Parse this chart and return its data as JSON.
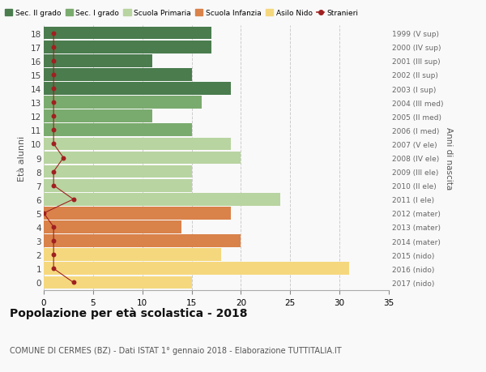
{
  "ages": [
    18,
    17,
    16,
    15,
    14,
    13,
    12,
    11,
    10,
    9,
    8,
    7,
    6,
    5,
    4,
    3,
    2,
    1,
    0
  ],
  "bar_values": [
    17,
    17,
    11,
    15,
    19,
    16,
    11,
    15,
    19,
    20,
    15,
    15,
    24,
    19,
    14,
    20,
    18,
    31,
    15
  ],
  "bar_colors": [
    "#4a7c4e",
    "#4a7c4e",
    "#4a7c4e",
    "#4a7c4e",
    "#4a7c4e",
    "#7aab6e",
    "#7aab6e",
    "#7aab6e",
    "#b8d4a0",
    "#b8d4a0",
    "#b8d4a0",
    "#b8d4a0",
    "#b8d4a0",
    "#d9824a",
    "#d9824a",
    "#d9824a",
    "#f5d87e",
    "#f5d87e",
    "#f5d87e"
  ],
  "stranieri": [
    1,
    1,
    1,
    1,
    1,
    1,
    1,
    1,
    1,
    2,
    1,
    1,
    3,
    0,
    1,
    1,
    1,
    1,
    3
  ],
  "right_labels": [
    "1999 (V sup)",
    "2000 (IV sup)",
    "2001 (III sup)",
    "2002 (II sup)",
    "2003 (I sup)",
    "2004 (III med)",
    "2005 (II med)",
    "2006 (I med)",
    "2007 (V ele)",
    "2008 (IV ele)",
    "2009 (III ele)",
    "2010 (II ele)",
    "2011 (I ele)",
    "2012 (mater)",
    "2013 (mater)",
    "2014 (mater)",
    "2015 (nido)",
    "2016 (nido)",
    "2017 (nido)"
  ],
  "legend_labels": [
    "Sec. II grado",
    "Sec. I grado",
    "Scuola Primaria",
    "Scuola Infanzia",
    "Asilo Nido",
    "Stranieri"
  ],
  "legend_colors": [
    "#4a7c4e",
    "#7aab6e",
    "#b8d4a0",
    "#d9824a",
    "#f5d87e",
    "#a02020"
  ],
  "title": "Popolazione per età scolastica - 2018",
  "subtitle": "COMUNE DI CERMES (BZ) - Dati ISTAT 1° gennaio 2018 - Elaborazione TUTTITALIA.IT",
  "ylabel": "Età alunni",
  "right_ylabel": "Anni di nascita",
  "xlim": [
    0,
    35
  ],
  "xticks": [
    0,
    5,
    10,
    15,
    20,
    25,
    30,
    35
  ],
  "background_color": "#f9f9f9",
  "grid_color": "#cccccc",
  "stranieri_color": "#a02020"
}
